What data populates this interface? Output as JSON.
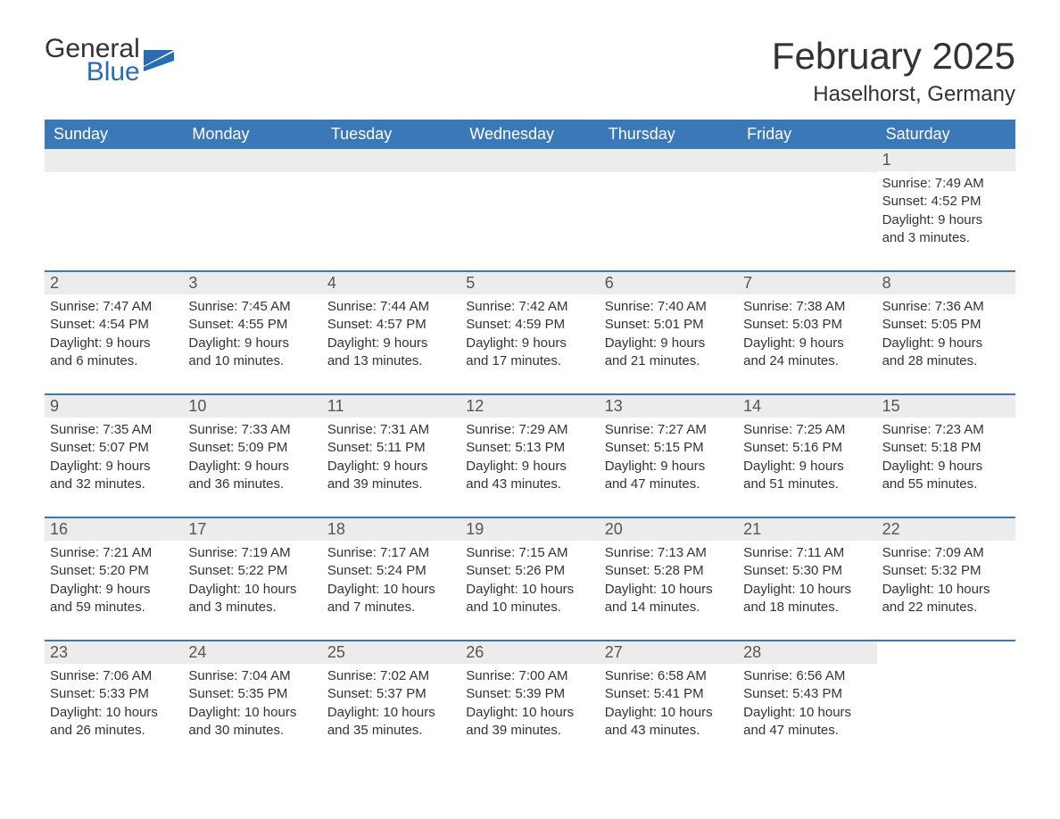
{
  "brand": {
    "word1": "General",
    "word2": "Blue",
    "accent_color": "#2a6cb0"
  },
  "title": "February 2025",
  "location": "Haselhorst, Germany",
  "theme": {
    "header_bg": "#3a78b8",
    "header_text": "#ffffff",
    "row_border": "#3a78b8",
    "daynum_bg": "#ececec",
    "body_text": "#333333",
    "page_bg": "#ffffff",
    "fontsize_title": 42,
    "fontsize_location": 24,
    "fontsize_weekday": 18,
    "fontsize_daynum": 18,
    "fontsize_body": 15
  },
  "weekdays": [
    "Sunday",
    "Monday",
    "Tuesday",
    "Wednesday",
    "Thursday",
    "Friday",
    "Saturday"
  ],
  "weeks": [
    [
      null,
      null,
      null,
      null,
      null,
      null,
      {
        "n": "1",
        "sunrise": "Sunrise: 7:49 AM",
        "sunset": "Sunset: 4:52 PM",
        "day1": "Daylight: 9 hours",
        "day2": "and 3 minutes."
      }
    ],
    [
      {
        "n": "2",
        "sunrise": "Sunrise: 7:47 AM",
        "sunset": "Sunset: 4:54 PM",
        "day1": "Daylight: 9 hours",
        "day2": "and 6 minutes."
      },
      {
        "n": "3",
        "sunrise": "Sunrise: 7:45 AM",
        "sunset": "Sunset: 4:55 PM",
        "day1": "Daylight: 9 hours",
        "day2": "and 10 minutes."
      },
      {
        "n": "4",
        "sunrise": "Sunrise: 7:44 AM",
        "sunset": "Sunset: 4:57 PM",
        "day1": "Daylight: 9 hours",
        "day2": "and 13 minutes."
      },
      {
        "n": "5",
        "sunrise": "Sunrise: 7:42 AM",
        "sunset": "Sunset: 4:59 PM",
        "day1": "Daylight: 9 hours",
        "day2": "and 17 minutes."
      },
      {
        "n": "6",
        "sunrise": "Sunrise: 7:40 AM",
        "sunset": "Sunset: 5:01 PM",
        "day1": "Daylight: 9 hours",
        "day2": "and 21 minutes."
      },
      {
        "n": "7",
        "sunrise": "Sunrise: 7:38 AM",
        "sunset": "Sunset: 5:03 PM",
        "day1": "Daylight: 9 hours",
        "day2": "and 24 minutes."
      },
      {
        "n": "8",
        "sunrise": "Sunrise: 7:36 AM",
        "sunset": "Sunset: 5:05 PM",
        "day1": "Daylight: 9 hours",
        "day2": "and 28 minutes."
      }
    ],
    [
      {
        "n": "9",
        "sunrise": "Sunrise: 7:35 AM",
        "sunset": "Sunset: 5:07 PM",
        "day1": "Daylight: 9 hours",
        "day2": "and 32 minutes."
      },
      {
        "n": "10",
        "sunrise": "Sunrise: 7:33 AM",
        "sunset": "Sunset: 5:09 PM",
        "day1": "Daylight: 9 hours",
        "day2": "and 36 minutes."
      },
      {
        "n": "11",
        "sunrise": "Sunrise: 7:31 AM",
        "sunset": "Sunset: 5:11 PM",
        "day1": "Daylight: 9 hours",
        "day2": "and 39 minutes."
      },
      {
        "n": "12",
        "sunrise": "Sunrise: 7:29 AM",
        "sunset": "Sunset: 5:13 PM",
        "day1": "Daylight: 9 hours",
        "day2": "and 43 minutes."
      },
      {
        "n": "13",
        "sunrise": "Sunrise: 7:27 AM",
        "sunset": "Sunset: 5:15 PM",
        "day1": "Daylight: 9 hours",
        "day2": "and 47 minutes."
      },
      {
        "n": "14",
        "sunrise": "Sunrise: 7:25 AM",
        "sunset": "Sunset: 5:16 PM",
        "day1": "Daylight: 9 hours",
        "day2": "and 51 minutes."
      },
      {
        "n": "15",
        "sunrise": "Sunrise: 7:23 AM",
        "sunset": "Sunset: 5:18 PM",
        "day1": "Daylight: 9 hours",
        "day2": "and 55 minutes."
      }
    ],
    [
      {
        "n": "16",
        "sunrise": "Sunrise: 7:21 AM",
        "sunset": "Sunset: 5:20 PM",
        "day1": "Daylight: 9 hours",
        "day2": "and 59 minutes."
      },
      {
        "n": "17",
        "sunrise": "Sunrise: 7:19 AM",
        "sunset": "Sunset: 5:22 PM",
        "day1": "Daylight: 10 hours",
        "day2": "and 3 minutes."
      },
      {
        "n": "18",
        "sunrise": "Sunrise: 7:17 AM",
        "sunset": "Sunset: 5:24 PM",
        "day1": "Daylight: 10 hours",
        "day2": "and 7 minutes."
      },
      {
        "n": "19",
        "sunrise": "Sunrise: 7:15 AM",
        "sunset": "Sunset: 5:26 PM",
        "day1": "Daylight: 10 hours",
        "day2": "and 10 minutes."
      },
      {
        "n": "20",
        "sunrise": "Sunrise: 7:13 AM",
        "sunset": "Sunset: 5:28 PM",
        "day1": "Daylight: 10 hours",
        "day2": "and 14 minutes."
      },
      {
        "n": "21",
        "sunrise": "Sunrise: 7:11 AM",
        "sunset": "Sunset: 5:30 PM",
        "day1": "Daylight: 10 hours",
        "day2": "and 18 minutes."
      },
      {
        "n": "22",
        "sunrise": "Sunrise: 7:09 AM",
        "sunset": "Sunset: 5:32 PM",
        "day1": "Daylight: 10 hours",
        "day2": "and 22 minutes."
      }
    ],
    [
      {
        "n": "23",
        "sunrise": "Sunrise: 7:06 AM",
        "sunset": "Sunset: 5:33 PM",
        "day1": "Daylight: 10 hours",
        "day2": "and 26 minutes."
      },
      {
        "n": "24",
        "sunrise": "Sunrise: 7:04 AM",
        "sunset": "Sunset: 5:35 PM",
        "day1": "Daylight: 10 hours",
        "day2": "and 30 minutes."
      },
      {
        "n": "25",
        "sunrise": "Sunrise: 7:02 AM",
        "sunset": "Sunset: 5:37 PM",
        "day1": "Daylight: 10 hours",
        "day2": "and 35 minutes."
      },
      {
        "n": "26",
        "sunrise": "Sunrise: 7:00 AM",
        "sunset": "Sunset: 5:39 PM",
        "day1": "Daylight: 10 hours",
        "day2": "and 39 minutes."
      },
      {
        "n": "27",
        "sunrise": "Sunrise: 6:58 AM",
        "sunset": "Sunset: 5:41 PM",
        "day1": "Daylight: 10 hours",
        "day2": "and 43 minutes."
      },
      {
        "n": "28",
        "sunrise": "Sunrise: 6:56 AM",
        "sunset": "Sunset: 5:43 PM",
        "day1": "Daylight: 10 hours",
        "day2": "and 47 minutes."
      },
      null
    ]
  ]
}
